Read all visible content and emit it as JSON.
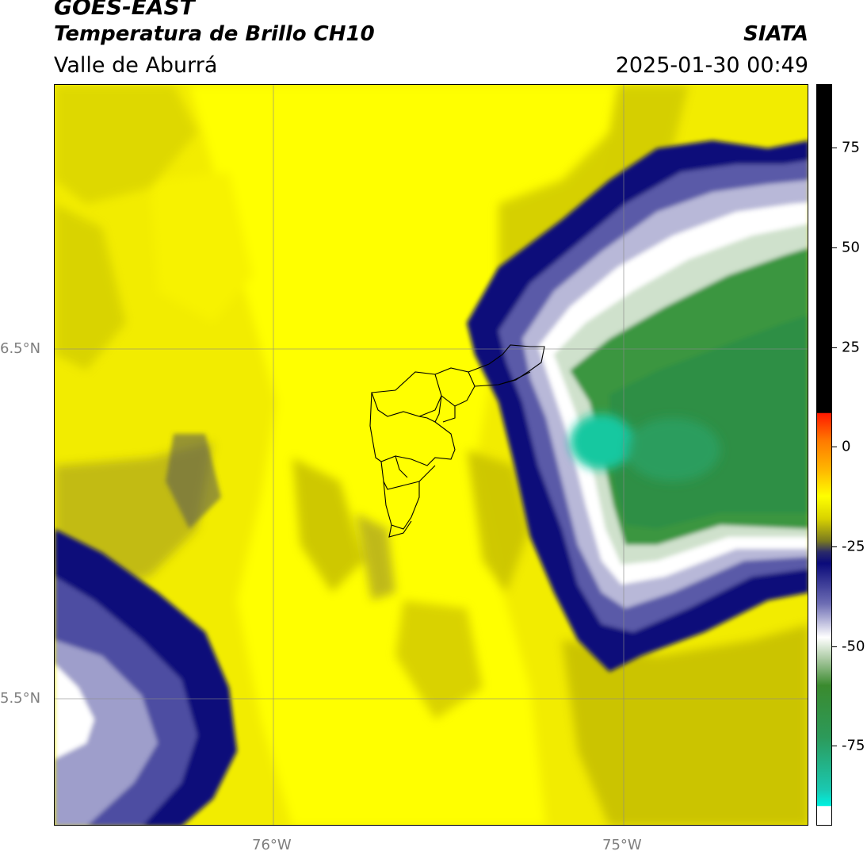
{
  "header": {
    "satellite": "GOES-EAST",
    "product": "Temperatura de Brillo CH10",
    "region": "Valle de Aburrá",
    "agency": "SIATA",
    "datetime": "2025-01-30 00:49"
  },
  "axes": {
    "lat_labels": [
      {
        "text": "6.5°N",
        "lat": 6.5
      },
      {
        "text": "5.5°N",
        "lat": 5.5
      }
    ],
    "lon_labels": [
      {
        "text": "76°W",
        "lon": -76.0
      },
      {
        "text": "75°W",
        "lon": -75.0
      }
    ],
    "extent": {
      "lon_min": -76.625,
      "lon_max": -74.47,
      "lat_min": 5.13,
      "lat_max": 7.25
    },
    "gridlines": true
  },
  "colorbar": {
    "ticks": [
      "75",
      "50",
      "25",
      "0",
      "-25",
      "-50",
      "-75"
    ],
    "tick_values": [
      75,
      50,
      25,
      0,
      -25,
      -50,
      -75
    ],
    "range": [
      -95,
      91
    ]
  },
  "colors": {
    "warm_yellow": "#ffff00",
    "olive": "#c9c300",
    "navy": "#0a0a7a",
    "white": "#ffffff",
    "green": "#3a9640",
    "teal": "#16c8a0"
  }
}
